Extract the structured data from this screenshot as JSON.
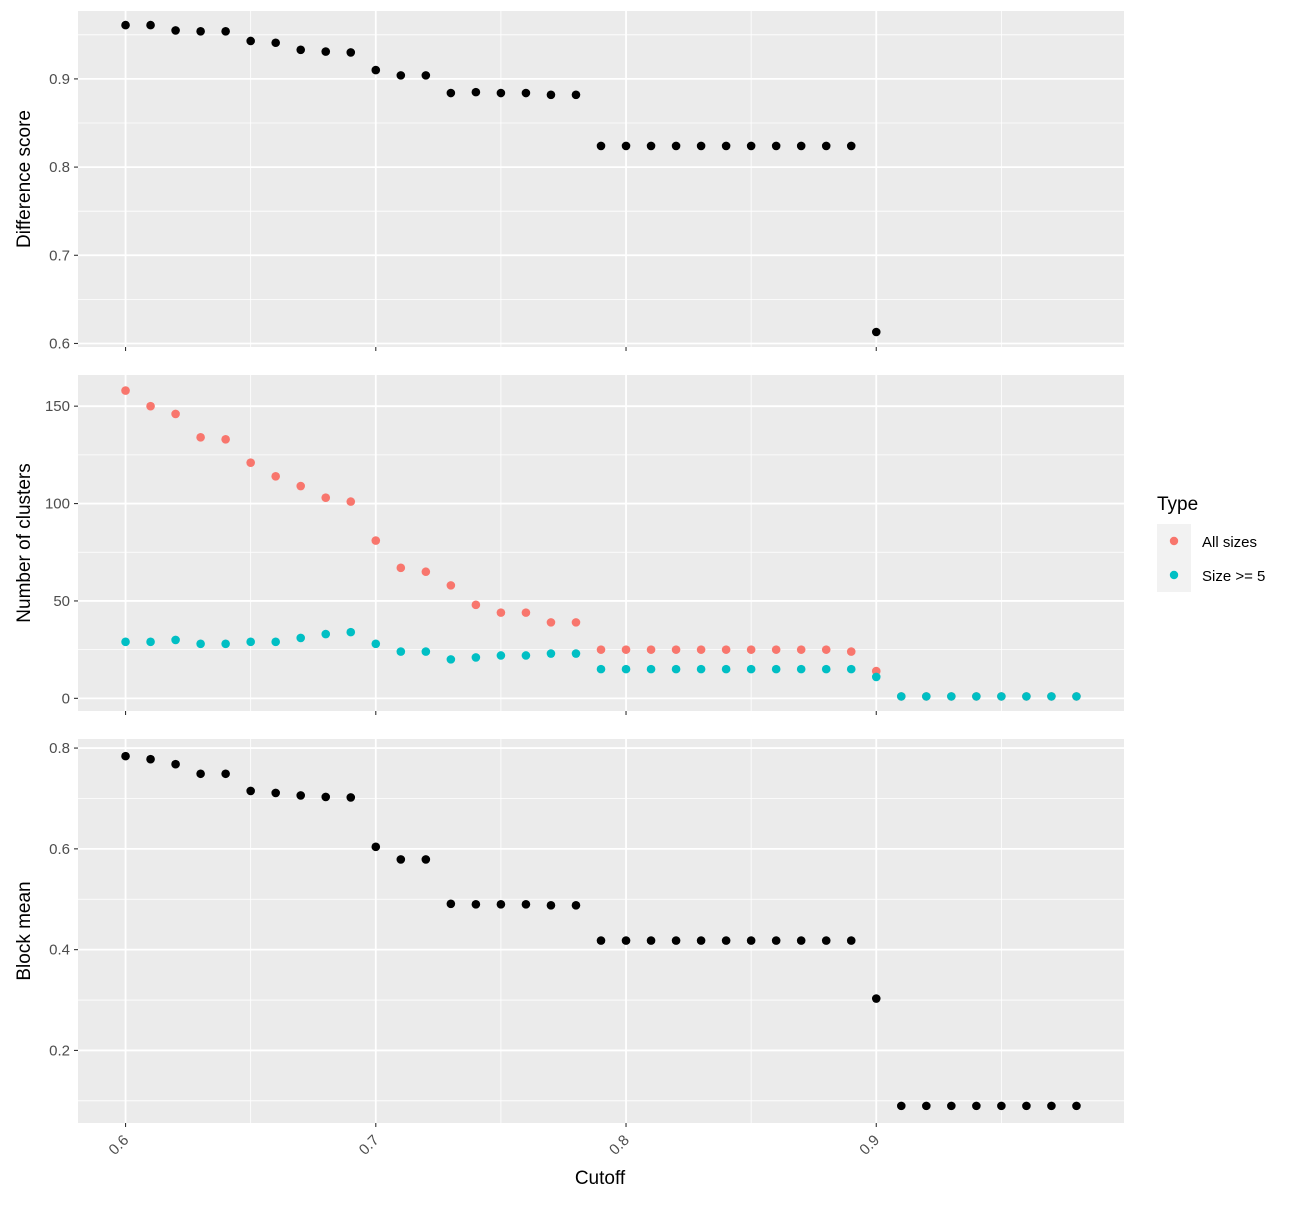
{
  "chart_data": [
    {
      "type": "scatter",
      "panel": "top",
      "ylabel": "Difference score",
      "xlim": [
        0.581,
        0.999
      ],
      "ylim": [
        0.596,
        0.977
      ],
      "yticks": [
        0.6,
        0.7,
        0.8,
        0.9
      ],
      "series": [
        {
          "color": "#000000",
          "x": [
            0.6,
            0.61,
            0.62,
            0.63,
            0.64,
            0.65,
            0.66,
            0.67,
            0.68,
            0.69,
            0.7,
            0.71,
            0.72,
            0.73,
            0.74,
            0.75,
            0.76,
            0.77,
            0.78,
            0.79,
            0.8,
            0.81,
            0.82,
            0.83,
            0.84,
            0.85,
            0.86,
            0.87,
            0.88,
            0.89,
            0.9
          ],
          "y": [
            0.961,
            0.961,
            0.955,
            0.954,
            0.954,
            0.943,
            0.941,
            0.933,
            0.931,
            0.93,
            0.91,
            0.904,
            0.904,
            0.884,
            0.885,
            0.884,
            0.884,
            0.882,
            0.882,
            0.824,
            0.824,
            0.824,
            0.824,
            0.824,
            0.824,
            0.824,
            0.824,
            0.824,
            0.824,
            0.824,
            0.613
          ]
        }
      ]
    },
    {
      "type": "scatter",
      "panel": "middle",
      "ylabel": "Number of clusters",
      "xlim": [
        0.581,
        0.999
      ],
      "ylim": [
        -6.5,
        166
      ],
      "yticks": [
        0,
        50,
        100,
        150
      ],
      "series": [
        {
          "name": "All sizes",
          "color": "#F8766D",
          "x": [
            0.6,
            0.61,
            0.62,
            0.63,
            0.64,
            0.65,
            0.66,
            0.67,
            0.68,
            0.69,
            0.7,
            0.71,
            0.72,
            0.73,
            0.74,
            0.75,
            0.76,
            0.77,
            0.78,
            0.79,
            0.8,
            0.81,
            0.82,
            0.83,
            0.84,
            0.85,
            0.86,
            0.87,
            0.88,
            0.89,
            0.9,
            0.91,
            0.92,
            0.93,
            0.94,
            0.95,
            0.96,
            0.97,
            0.98
          ],
          "y": [
            158,
            150,
            146,
            134,
            133,
            121,
            114,
            109,
            103,
            101,
            81,
            67,
            65,
            58,
            48,
            44,
            44,
            39,
            39,
            25,
            25,
            25,
            25,
            25,
            25,
            25,
            25,
            25,
            25,
            24,
            14,
            1,
            1,
            1,
            1,
            1,
            1,
            1,
            1
          ]
        },
        {
          "name": "Size >= 5",
          "color": "#00BFC4",
          "x": [
            0.6,
            0.61,
            0.62,
            0.63,
            0.64,
            0.65,
            0.66,
            0.67,
            0.68,
            0.69,
            0.7,
            0.71,
            0.72,
            0.73,
            0.74,
            0.75,
            0.76,
            0.77,
            0.78,
            0.79,
            0.8,
            0.81,
            0.82,
            0.83,
            0.84,
            0.85,
            0.86,
            0.87,
            0.88,
            0.89,
            0.9,
            0.91,
            0.92,
            0.93,
            0.94,
            0.95,
            0.96,
            0.97,
            0.98
          ],
          "y": [
            29,
            29,
            30,
            28,
            28,
            29,
            29,
            31,
            33,
            34,
            28,
            24,
            24,
            20,
            21,
            22,
            22,
            23,
            23,
            15,
            15,
            15,
            15,
            15,
            15,
            15,
            15,
            15,
            15,
            15,
            11,
            1,
            1,
            1,
            1,
            1,
            1,
            1,
            1
          ]
        }
      ]
    },
    {
      "type": "scatter",
      "panel": "bottom",
      "ylabel": "Block mean",
      "xlabel": "Cutoff",
      "xlim": [
        0.581,
        0.999
      ],
      "ylim": [
        0.056,
        0.818
      ],
      "yticks": [
        0.2,
        0.4,
        0.6,
        0.8
      ],
      "xticks": [
        0.6,
        0.7,
        0.8,
        0.9
      ],
      "series": [
        {
          "color": "#000000",
          "x": [
            0.6,
            0.61,
            0.62,
            0.63,
            0.64,
            0.65,
            0.66,
            0.67,
            0.68,
            0.69,
            0.7,
            0.71,
            0.72,
            0.73,
            0.74,
            0.75,
            0.76,
            0.77,
            0.78,
            0.79,
            0.8,
            0.81,
            0.82,
            0.83,
            0.84,
            0.85,
            0.86,
            0.87,
            0.88,
            0.89,
            0.9,
            0.91,
            0.92,
            0.93,
            0.94,
            0.95,
            0.96,
            0.97,
            0.98
          ],
          "y": [
            0.784,
            0.778,
            0.768,
            0.749,
            0.749,
            0.715,
            0.711,
            0.706,
            0.703,
            0.702,
            0.604,
            0.579,
            0.579,
            0.491,
            0.49,
            0.49,
            0.49,
            0.488,
            0.488,
            0.418,
            0.418,
            0.418,
            0.418,
            0.418,
            0.418,
            0.418,
            0.418,
            0.418,
            0.418,
            0.418,
            0.303,
            0.09,
            0.09,
            0.09,
            0.09,
            0.09,
            0.09,
            0.09,
            0.09
          ]
        }
      ]
    }
  ],
  "legend": {
    "title": "Type",
    "position": "right",
    "items": [
      {
        "label": "All sizes",
        "color": "#F8766D"
      },
      {
        "label": "Size >= 5",
        "color": "#00BFC4"
      }
    ]
  },
  "panel_background": "#EBEBEB",
  "grid_color": "#FFFFFF"
}
